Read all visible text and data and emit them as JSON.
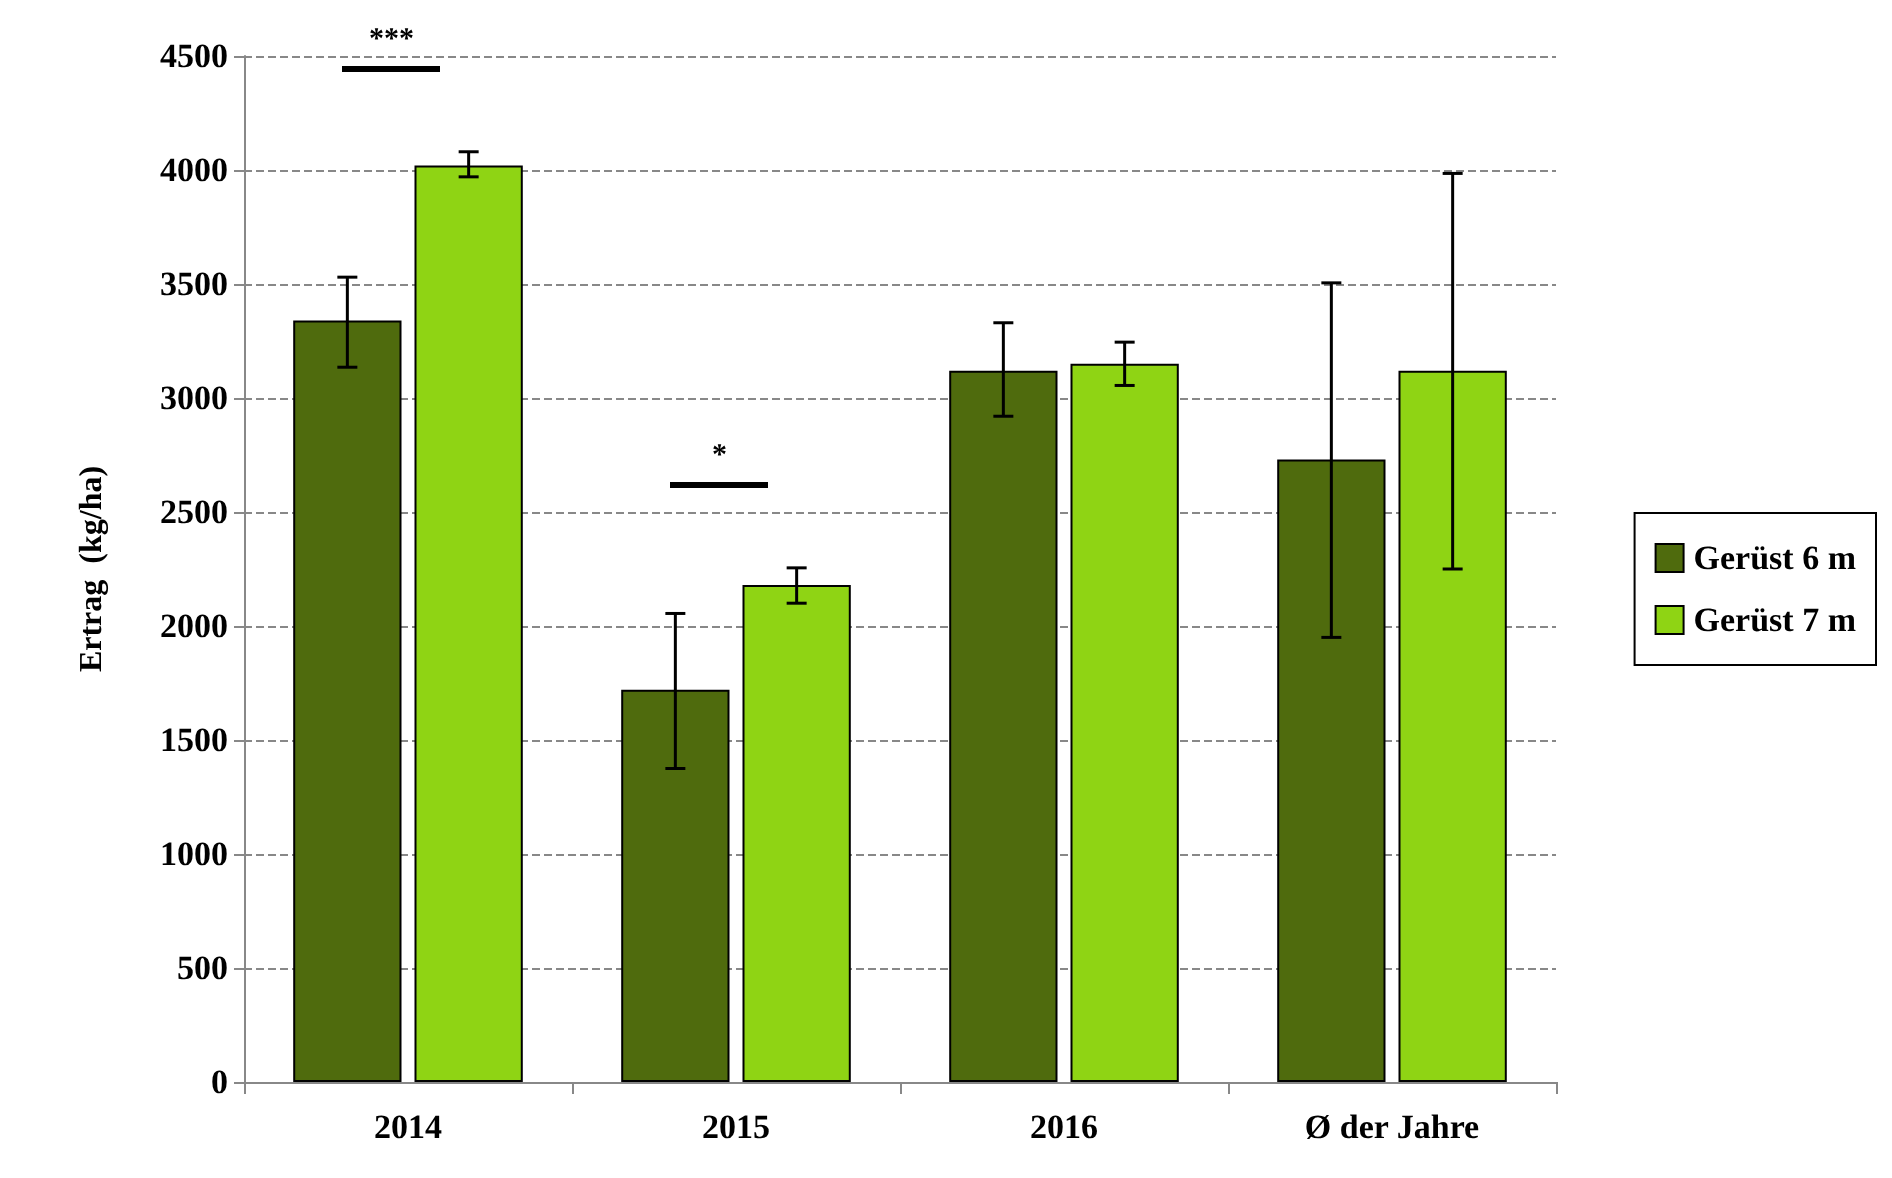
{
  "chart_data": {
    "type": "bar",
    "ylabel": "Ertrag  (kg/ha)",
    "categories": [
      "2014",
      "2015",
      "2016",
      "Ø der Jahre"
    ],
    "series": [
      {
        "name": "Gerüst 6 m",
        "color": "#4f6b0d",
        "values": [
          3340,
          1720,
          3120,
          2730
        ],
        "errors": [
          [
            3135,
            3530
          ],
          [
            1375,
            2055
          ],
          [
            2920,
            3330
          ],
          [
            1950,
            3505
          ]
        ]
      },
      {
        "name": "Gerüst 7 m",
        "color": "#8fd414",
        "values": [
          4020,
          2180,
          3150,
          3120
        ],
        "errors": [
          [
            3970,
            4080
          ],
          [
            2100,
            2255
          ],
          [
            3055,
            3245
          ],
          [
            2250,
            3985
          ]
        ]
      }
    ],
    "ylim": [
      0,
      4500
    ],
    "yticks": [
      0,
      500,
      1000,
      1500,
      2000,
      2500,
      3000,
      3500,
      4000,
      4500
    ],
    "grid": "y",
    "legend": "right",
    "annotations": [
      "***",
      "*"
    ]
  }
}
